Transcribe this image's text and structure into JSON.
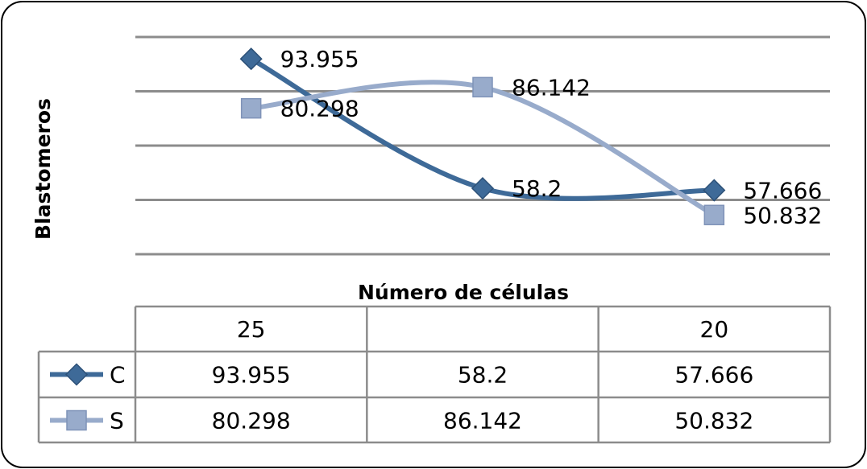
{
  "chart_data": {
    "type": "line",
    "ylabel": "Blastomeros",
    "xlabel": "Número de células",
    "categories": [
      "25",
      "",
      "20"
    ],
    "ylim": [
      40,
      100
    ],
    "grid": true,
    "legend": "data-table",
    "series": [
      {
        "name": "C",
        "values": [
          93.955,
          58.2,
          57.666
        ],
        "labels": [
          "93.955",
          "58.2",
          "57.666"
        ],
        "color": "#3e6a98",
        "marker": "diamond"
      },
      {
        "name": "S",
        "values": [
          80.298,
          86.142,
          50.832
        ],
        "labels": [
          "80.298",
          "86.142",
          "50.832"
        ],
        "color": "#98abcb",
        "marker": "square"
      }
    ]
  }
}
